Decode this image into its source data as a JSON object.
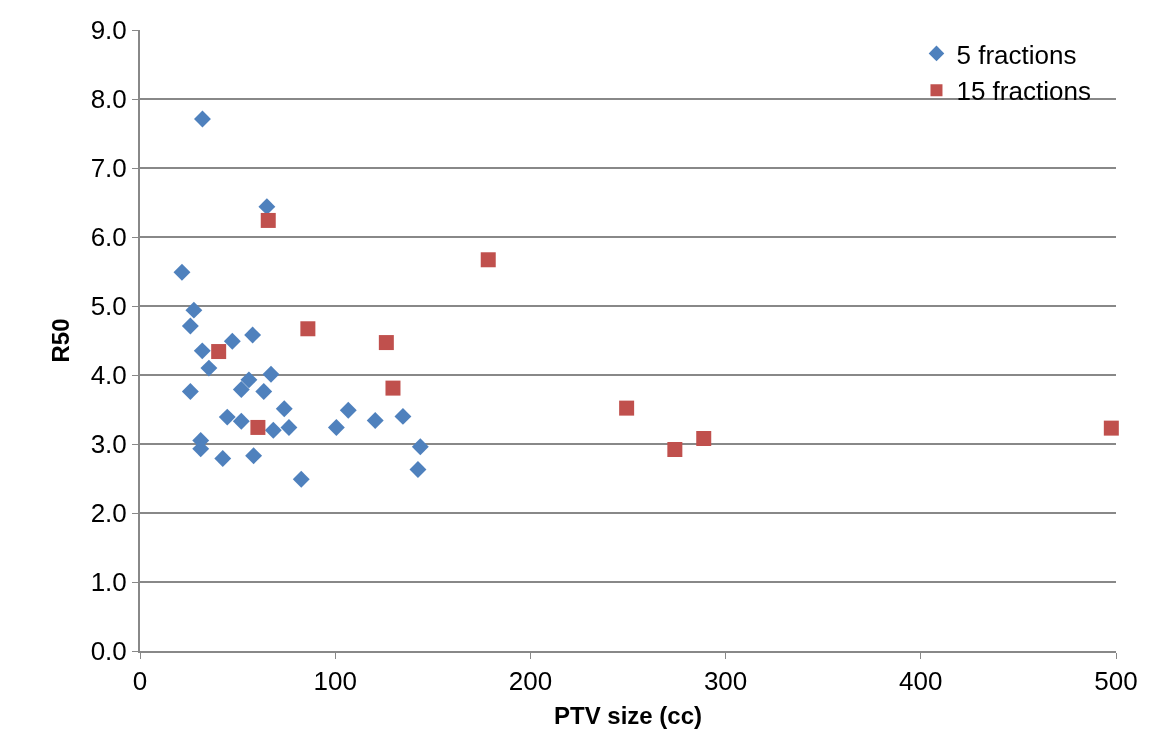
{
  "chart_data": {
    "type": "scatter",
    "xlabel": "PTV size (cc)",
    "ylabel": "R50",
    "xlim": [
      0,
      500
    ],
    "xticks": [
      0,
      100,
      200,
      300,
      400,
      500
    ],
    "ylim": [
      0,
      9
    ],
    "yticks": [
      {
        "value": 0,
        "label": "0.0"
      },
      {
        "value": 1,
        "label": "1.0"
      },
      {
        "value": 2,
        "label": "2.0"
      },
      {
        "value": 3,
        "label": "3.0"
      },
      {
        "value": 4,
        "label": "4.0"
      },
      {
        "value": 5,
        "label": "5.0"
      },
      {
        "value": 6,
        "label": "6.0"
      },
      {
        "value": 7,
        "label": "7.0"
      },
      {
        "value": 8,
        "label": "8.0"
      },
      {
        "value": 9,
        "label": "9.0"
      }
    ],
    "grid": "y",
    "legend": "top right",
    "series": [
      {
        "name": "5 fractions",
        "color": "#4f81bd",
        "marker": "diamond",
        "x": [
          32,
          65,
          21.5,
          27.6,
          25.8,
          31.9,
          47.3,
          57.7,
          35.3,
          67.1,
          25.8,
          55.8,
          51.9,
          63.4,
          73.9,
          44.7,
          51.9,
          68.3,
          76.3,
          100.6,
          106.7,
          120.5,
          134.7,
          143.6,
          142.4,
          82.6,
          31.1,
          31.1,
          42.4,
          58.2
        ],
        "values": [
          7.71,
          6.44,
          5.49,
          4.94,
          4.71,
          4.35,
          4.49,
          4.58,
          4.1,
          4.01,
          3.76,
          3.93,
          3.79,
          3.76,
          3.51,
          3.39,
          3.33,
          3.2,
          3.24,
          3.24,
          3.49,
          3.34,
          3.4,
          2.96,
          2.63,
          2.49,
          3.05,
          2.93,
          2.79,
          2.83
        ]
      },
      {
        "name": "15 fractions",
        "color": "#c0504d",
        "marker": "square",
        "x": [
          65.7,
          40.3,
          86,
          126.2,
          129.6,
          60.4,
          178.4,
          249.3,
          274,
          288.8,
          497.6
        ],
        "values": [
          6.24,
          4.34,
          4.67,
          4.47,
          3.81,
          3.24,
          5.67,
          3.52,
          2.92,
          3.08,
          3.23
        ]
      }
    ]
  }
}
